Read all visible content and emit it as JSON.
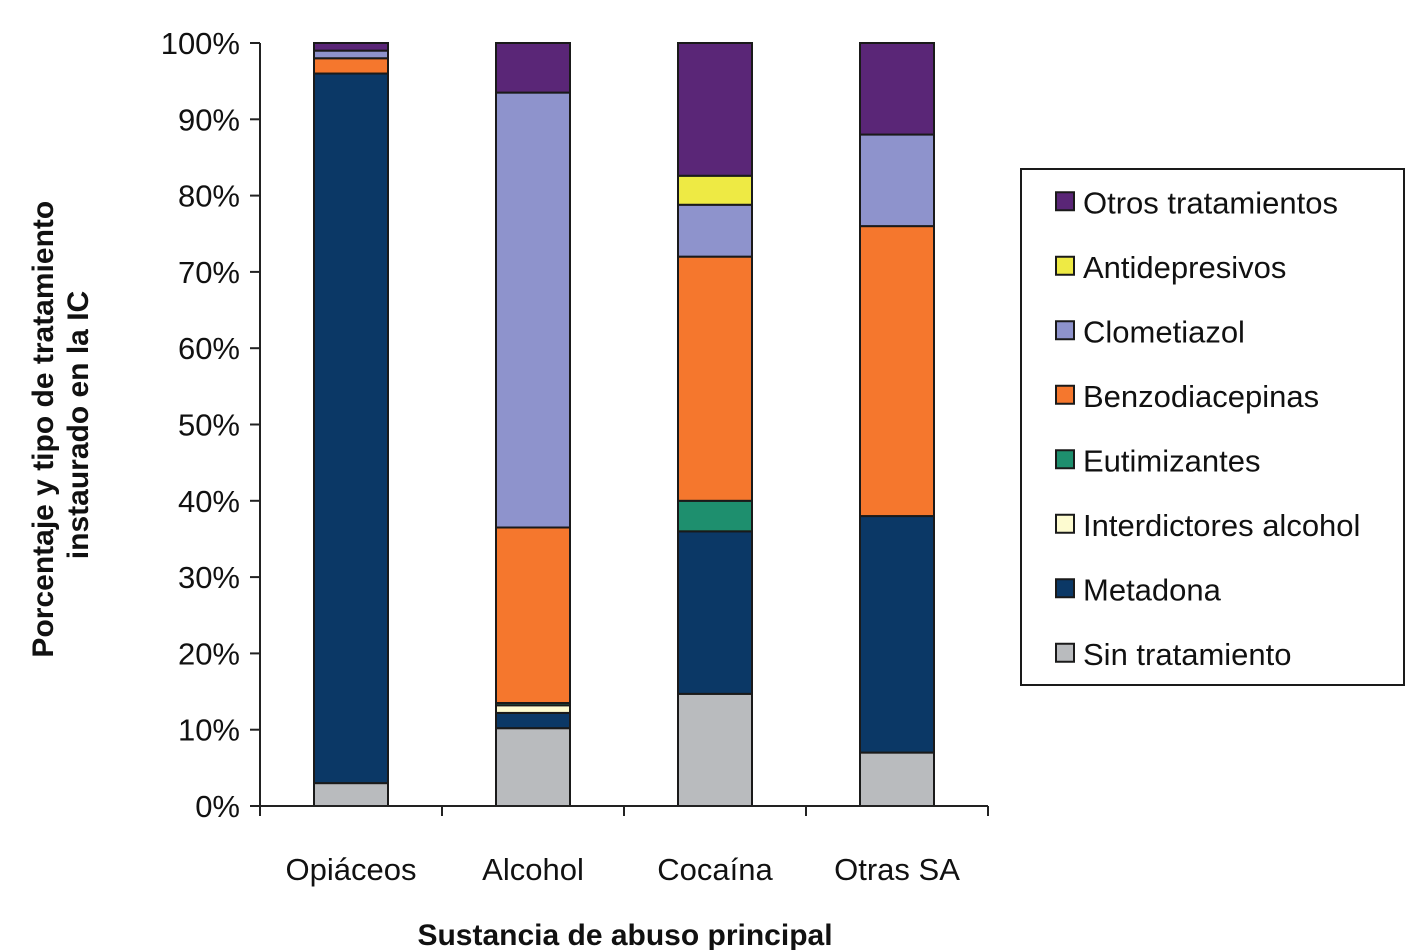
{
  "chart_data": {
    "type": "bar",
    "stacked": true,
    "normalized_percent": true,
    "xlabel": "Sustancia de abuso principal",
    "ylabel": "Porcentaje y tipo de tratamiento instaurado en la IC",
    "ylim": [
      0,
      100
    ],
    "yticks": [
      "0%",
      "10%",
      "20%",
      "30%",
      "40%",
      "50%",
      "60%",
      "70%",
      "80%",
      "90%",
      "100%"
    ],
    "categories": [
      "Opiáceos",
      "Alcohol",
      "Cocaína",
      "Otras SA"
    ],
    "series": [
      {
        "name": "Sin tratamiento",
        "color": "#b9bbbe",
        "values": [
          3,
          10.2,
          14.7,
          7
        ]
      },
      {
        "name": "Metadona",
        "color": "#0b3866",
        "values": [
          93,
          2,
          21.3,
          31
        ]
      },
      {
        "name": "Interdictores alcohol",
        "color": "#fdfbd0",
        "values": [
          0,
          1,
          0,
          0
        ]
      },
      {
        "name": "Eutimizantes",
        "color": "#1e8f6e",
        "values": [
          0,
          0.3,
          4,
          0
        ]
      },
      {
        "name": "Benzodiacepinas",
        "color": "#f5772d",
        "values": [
          2,
          23,
          32,
          38
        ]
      },
      {
        "name": "Clometiazol",
        "color": "#8e93cc",
        "values": [
          1,
          57,
          6.8,
          12
        ]
      },
      {
        "name": "Antidepresivos",
        "color": "#eeea44",
        "values": [
          0,
          0,
          3.8,
          0
        ]
      },
      {
        "name": "Otros tratamientos",
        "color": "#5a2677",
        "values": [
          1,
          6.5,
          17.4,
          12
        ]
      }
    ],
    "legend": {
      "position": "right",
      "order": [
        "Otros tratamientos",
        "Antidepresivos",
        "Clometiazol",
        "Benzodiacepinas",
        "Eutimizantes",
        "Interdictores alcohol",
        "Metadona",
        "Sin tratamiento"
      ]
    },
    "grid": false
  }
}
